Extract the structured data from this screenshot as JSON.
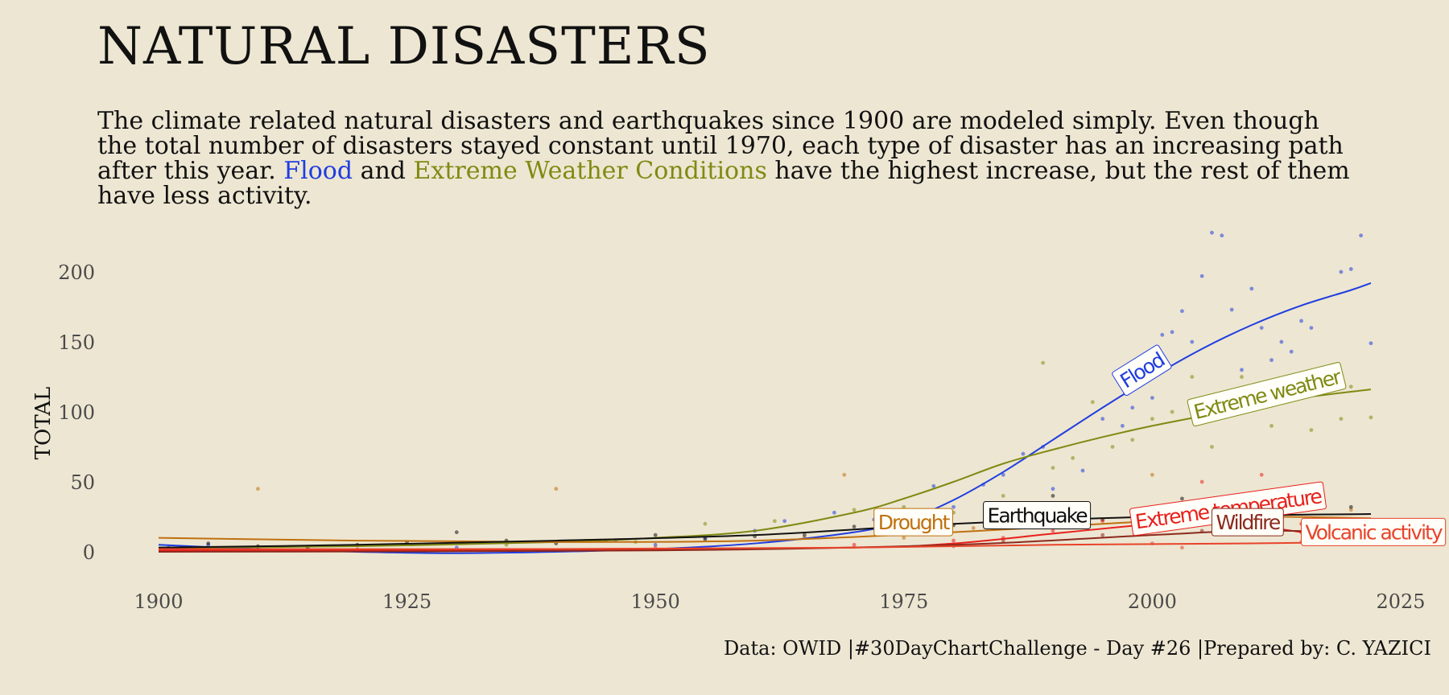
{
  "title": "NATURAL DISASTERS",
  "subtitle": {
    "part1": "The climate related natural disasters and earthquakes since 1900 are modeled simply. Even though the total number of disasters stayed constant until 1970, each type of disaster has an increasing path after this year. ",
    "flood": "Flood",
    "and": " and ",
    "extreme": "Extreme Weather Conditions",
    "part2": " have the highest increase, but the rest of them have less activity."
  },
  "caption": "Data: OWID |#30DayChartChallenge - Day #26 |Prepared by: C. YAZICI",
  "colors": {
    "background": "#ede6d2",
    "flood": "#1f3de0",
    "extreme_weather": "#7f8a12",
    "drought": "#c0700f",
    "earthquake": "#111111",
    "extreme_temperature": "#e8201c",
    "wildfire": "#8b2a1d",
    "volcanic_activity": "#e8432a"
  },
  "chart_data": {
    "type": "scatter",
    "ylabel": "TOTAL",
    "xlabel": "",
    "xlim": [
      1895,
      2025
    ],
    "ylim": [
      -10,
      230
    ],
    "x_ticks": [
      1900,
      1925,
      1950,
      1975,
      2000,
      2025
    ],
    "y_ticks": [
      0,
      50,
      100,
      150,
      200
    ],
    "grid": false,
    "series": [
      {
        "name": "Flood",
        "color": "#1f3de0",
        "smooth": [
          [
            1900,
            5
          ],
          [
            1910,
            2
          ],
          [
            1920,
            0
          ],
          [
            1930,
            -1
          ],
          [
            1940,
            0
          ],
          [
            1950,
            2
          ],
          [
            1960,
            6
          ],
          [
            1970,
            14
          ],
          [
            1975,
            22
          ],
          [
            1980,
            37
          ],
          [
            1985,
            57
          ],
          [
            1990,
            80
          ],
          [
            1995,
            103
          ],
          [
            2000,
            125
          ],
          [
            2005,
            145
          ],
          [
            2010,
            162
          ],
          [
            2015,
            176
          ],
          [
            2020,
            187
          ],
          [
            2022,
            192
          ]
        ],
        "points": [
          [
            1901,
            3
          ],
          [
            1905,
            5
          ],
          [
            1910,
            2
          ],
          [
            1930,
            3
          ],
          [
            1946,
            8
          ],
          [
            1950,
            5
          ],
          [
            1955,
            10
          ],
          [
            1960,
            15
          ],
          [
            1963,
            22
          ],
          [
            1968,
            28
          ],
          [
            1972,
            23
          ],
          [
            1978,
            47
          ],
          [
            1980,
            32
          ],
          [
            1983,
            48
          ],
          [
            1985,
            55
          ],
          [
            1987,
            70
          ],
          [
            1989,
            75
          ],
          [
            1990,
            45
          ],
          [
            1993,
            58
          ],
          [
            1995,
            95
          ],
          [
            1997,
            90
          ],
          [
            1998,
            103
          ],
          [
            2000,
            110
          ],
          [
            2001,
            155
          ],
          [
            2002,
            157
          ],
          [
            2003,
            172
          ],
          [
            2004,
            150
          ],
          [
            2005,
            197
          ],
          [
            2006,
            228
          ],
          [
            2007,
            226
          ],
          [
            2008,
            173
          ],
          [
            2009,
            130
          ],
          [
            2010,
            188
          ],
          [
            2011,
            160
          ],
          [
            2012,
            137
          ],
          [
            2013,
            150
          ],
          [
            2014,
            143
          ],
          [
            2015,
            165
          ],
          [
            2016,
            160
          ],
          [
            2017,
            127
          ],
          [
            2018,
            128
          ],
          [
            2019,
            200
          ],
          [
            2020,
            202
          ],
          [
            2021,
            226
          ],
          [
            2022,
            149
          ]
        ]
      },
      {
        "name": "Extreme weather",
        "color": "#7f8a12",
        "smooth": [
          [
            1900,
            3
          ],
          [
            1920,
            4
          ],
          [
            1940,
            7
          ],
          [
            1950,
            10
          ],
          [
            1960,
            15
          ],
          [
            1970,
            28
          ],
          [
            1975,
            38
          ],
          [
            1980,
            50
          ],
          [
            1985,
            63
          ],
          [
            1990,
            73
          ],
          [
            1995,
            82
          ],
          [
            2000,
            90
          ],
          [
            2005,
            97
          ],
          [
            2010,
            104
          ],
          [
            2015,
            110
          ],
          [
            2022,
            116
          ]
        ],
        "points": [
          [
            1935,
            5
          ],
          [
            1948,
            7
          ],
          [
            1955,
            20
          ],
          [
            1962,
            22
          ],
          [
            1970,
            30
          ],
          [
            1975,
            32
          ],
          [
            1980,
            28
          ],
          [
            1985,
            40
          ],
          [
            1989,
            135
          ],
          [
            1990,
            60
          ],
          [
            1992,
            67
          ],
          [
            1994,
            107
          ],
          [
            1996,
            75
          ],
          [
            1998,
            80
          ],
          [
            2000,
            95
          ],
          [
            2002,
            100
          ],
          [
            2004,
            125
          ],
          [
            2005,
            98
          ],
          [
            2006,
            75
          ],
          [
            2007,
            103
          ],
          [
            2009,
            125
          ],
          [
            2012,
            90
          ],
          [
            2014,
            118
          ],
          [
            2016,
            87
          ],
          [
            2017,
            131
          ],
          [
            2019,
            95
          ],
          [
            2020,
            118
          ],
          [
            2022,
            96
          ]
        ]
      },
      {
        "name": "Drought",
        "color": "#c0700f",
        "smooth": [
          [
            1900,
            10
          ],
          [
            1920,
            8
          ],
          [
            1940,
            7
          ],
          [
            1960,
            8
          ],
          [
            1980,
            14
          ],
          [
            2000,
            22
          ],
          [
            2010,
            25
          ],
          [
            2022,
            24
          ]
        ],
        "points": [
          [
            1910,
            45
          ],
          [
            1940,
            45
          ],
          [
            1965,
            10
          ],
          [
            1969,
            55
          ],
          [
            1975,
            10
          ],
          [
            1982,
            17
          ],
          [
            1990,
            20
          ],
          [
            2000,
            55
          ],
          [
            2005,
            27
          ],
          [
            2010,
            30
          ],
          [
            2015,
            47
          ],
          [
            2020,
            30
          ]
        ]
      },
      {
        "name": "Earthquake",
        "color": "#111111",
        "smooth": [
          [
            1900,
            3
          ],
          [
            1920,
            5
          ],
          [
            1940,
            8
          ],
          [
            1960,
            12
          ],
          [
            1980,
            20
          ],
          [
            2000,
            25
          ],
          [
            2022,
            27
          ]
        ],
        "points": [
          [
            1902,
            2
          ],
          [
            1905,
            6
          ],
          [
            1910,
            4
          ],
          [
            1915,
            3
          ],
          [
            1920,
            5
          ],
          [
            1925,
            7
          ],
          [
            1930,
            14
          ],
          [
            1935,
            8
          ],
          [
            1940,
            6
          ],
          [
            1945,
            8
          ],
          [
            1950,
            12
          ],
          [
            1955,
            9
          ],
          [
            1960,
            11
          ],
          [
            1965,
            12
          ],
          [
            1970,
            18
          ],
          [
            1975,
            16
          ],
          [
            1980,
            19
          ],
          [
            1985,
            25
          ],
          [
            1990,
            40
          ],
          [
            1995,
            23
          ],
          [
            2000,
            30
          ],
          [
            2003,
            38
          ],
          [
            2005,
            28
          ],
          [
            2010,
            27
          ],
          [
            2015,
            30
          ],
          [
            2020,
            32
          ]
        ]
      },
      {
        "name": "Extreme temperature",
        "color": "#e8201c",
        "smooth": [
          [
            1900,
            1
          ],
          [
            1940,
            1
          ],
          [
            1970,
            3
          ],
          [
            1980,
            6
          ],
          [
            1990,
            13
          ],
          [
            2000,
            20
          ],
          [
            2005,
            23
          ],
          [
            2010,
            19
          ],
          [
            2015,
            14
          ],
          [
            2018,
            10
          ]
        ],
        "points": [
          [
            1970,
            5
          ],
          [
            1980,
            8
          ],
          [
            1985,
            10
          ],
          [
            1990,
            15
          ],
          [
            1995,
            22
          ],
          [
            2000,
            25
          ],
          [
            2003,
            30
          ],
          [
            2005,
            50
          ],
          [
            2008,
            25
          ],
          [
            2011,
            55
          ],
          [
            2015,
            20
          ]
        ]
      },
      {
        "name": "Wildfire",
        "color": "#8b2a1d",
        "smooth": [
          [
            1900,
            0
          ],
          [
            1950,
            1
          ],
          [
            1980,
            5
          ],
          [
            2000,
            12
          ],
          [
            2010,
            15
          ],
          [
            2022,
            14
          ]
        ],
        "points": [
          [
            1985,
            8
          ],
          [
            1995,
            12
          ],
          [
            2005,
            15
          ],
          [
            2015,
            14
          ]
        ]
      },
      {
        "name": "Volcanic activity",
        "color": "#e8432a",
        "smooth": [
          [
            1900,
            2
          ],
          [
            1940,
            2
          ],
          [
            1970,
            3
          ],
          [
            1990,
            5
          ],
          [
            2010,
            6
          ],
          [
            2022,
            7
          ]
        ],
        "points": [
          [
            1920,
            2
          ],
          [
            1950,
            3
          ],
          [
            1980,
            4
          ],
          [
            2000,
            6
          ],
          [
            2003,
            3
          ],
          [
            2015,
            7
          ]
        ]
      }
    ],
    "labels": [
      {
        "text": "Flood",
        "series": "Flood",
        "x": 1997,
        "y": 115,
        "angle": -32
      },
      {
        "text": "Extreme weather",
        "series": "Extreme weather",
        "x": 2004,
        "y": 94,
        "angle": -14
      },
      {
        "text": "Drought",
        "series": "Drought",
        "x": 1972,
        "y": 16,
        "angle": 0
      },
      {
        "text": "Earthquake",
        "series": "Earthquake",
        "x": 1983,
        "y": 21,
        "angle": 0
      },
      {
        "text": "Extreme temperature",
        "series": "Extreme temperature",
        "x": 1998,
        "y": 16,
        "angle": -8
      },
      {
        "text": "Wildfire",
        "series": "Wildfire",
        "x": 2006,
        "y": 16,
        "angle": 0
      },
      {
        "text": "Volcanic activity",
        "series": "Volcanic activity",
        "x": 2015,
        "y": 9,
        "angle": 0
      }
    ]
  }
}
